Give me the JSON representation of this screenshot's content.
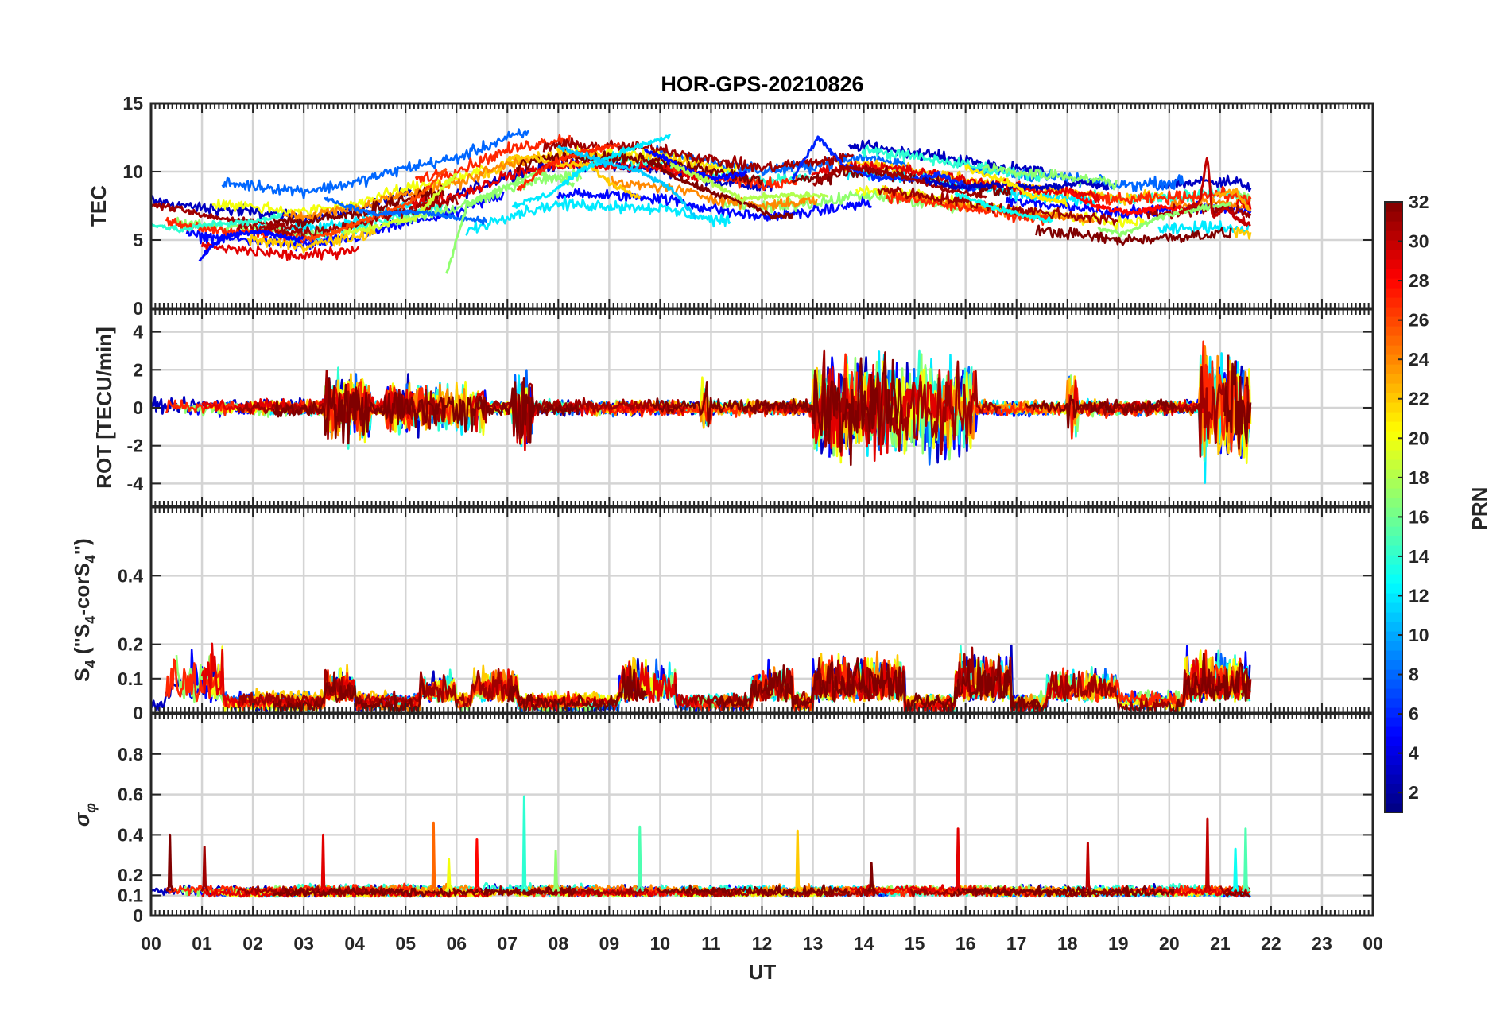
{
  "chart_data": {
    "type": "line",
    "title": "HOR-GPS-20210826",
    "xlabel": "UT",
    "x_ticks": [
      "00",
      "01",
      "02",
      "03",
      "04",
      "05",
      "06",
      "07",
      "08",
      "09",
      "10",
      "11",
      "12",
      "13",
      "14",
      "15",
      "16",
      "17",
      "18",
      "19",
      "20",
      "21",
      "22",
      "23",
      "00"
    ],
    "x_range_hours": [
      0,
      24
    ],
    "data_end_hour": 21.6,
    "colorbar": {
      "label": "PRN",
      "range": [
        1,
        32
      ],
      "ticks": [
        "2",
        "4",
        "6",
        "8",
        "10",
        "12",
        "14",
        "16",
        "18",
        "20",
        "22",
        "24",
        "26",
        "28",
        "30",
        "32"
      ],
      "colormap": "jet"
    },
    "panels": [
      {
        "id": "tec",
        "ylabel": "TEC",
        "ylim": [
          0,
          15
        ],
        "yticks": [
          "0",
          "5",
          "10",
          "15"
        ],
        "baseline": [
          [
            0,
            6.8
          ],
          [
            1,
            6.3
          ],
          [
            2,
            6.0
          ],
          [
            3,
            5.6
          ],
          [
            4,
            6.2
          ],
          [
            5,
            7.3
          ],
          [
            6,
            8.0
          ],
          [
            7,
            9.5
          ],
          [
            8,
            10.3
          ],
          [
            9,
            10.2
          ],
          [
            10,
            10.0
          ],
          [
            11,
            9.2
          ],
          [
            12,
            8.6
          ],
          [
            13,
            9.0
          ],
          [
            14,
            9.6
          ],
          [
            15,
            9.1
          ],
          [
            16,
            8.5
          ],
          [
            17,
            7.9
          ],
          [
            18,
            7.6
          ],
          [
            19,
            7.1
          ],
          [
            20,
            7.3
          ],
          [
            21,
            7.6
          ],
          [
            21.6,
            7.2
          ]
        ],
        "spread": 2.0,
        "noise": 0.35,
        "series": [
          {
            "prn": 31,
            "points": [
              [
                0,
                7.6
              ],
              [
                0.5,
                7.3
              ],
              [
                1,
                6.8
              ],
              [
                1.5,
                6.5
              ],
              [
                2,
                6.4
              ],
              [
                2.5,
                6.1
              ],
              [
                3,
                5.8
              ]
            ]
          },
          {
            "prn": 5,
            "points": [
              [
                0.95,
                3.6
              ],
              [
                1.2,
                4.6
              ],
              [
                1.6,
                5.4
              ],
              [
                2.2,
                5.6
              ],
              [
                2.8,
                5.1
              ],
              [
                3.2,
                5.0
              ]
            ]
          },
          {
            "prn": 14,
            "points": [
              [
                0,
                6.2
              ],
              [
                0.6,
                5.7
              ],
              [
                1.2,
                6.2
              ],
              [
                2,
                6.3
              ],
              [
                2.6,
                6.9
              ]
            ]
          },
          {
            "prn": 26,
            "points": [
              [
                3,
                5.0
              ],
              [
                3.6,
                5.6
              ],
              [
                4.3,
                6.6
              ],
              [
                5,
                7.6
              ],
              [
                5.5,
                9.0
              ],
              [
                5.8,
                10.3
              ]
            ]
          },
          {
            "prn": 19,
            "points": [
              [
                3.8,
                5.5
              ],
              [
                4.5,
                6.0
              ],
              [
                5.2,
                6.7
              ],
              [
                5.8,
                9.1
              ],
              [
                6,
                9.8
              ]
            ]
          },
          {
            "prn": 8,
            "points": [
              [
                3.4,
                8.1
              ],
              [
                3.9,
                7.4
              ],
              [
                4.4,
                6.9
              ],
              [
                5.3,
                7.1
              ],
              [
                6,
                6.6
              ],
              [
                6.6,
                6.4
              ]
            ]
          },
          {
            "prn": 17,
            "points": [
              [
                5.8,
                2.5
              ],
              [
                6.2,
                7.5
              ],
              [
                7,
                9.0
              ],
              [
                7.6,
                10.0
              ],
              [
                8.3,
                9.0
              ]
            ]
          },
          {
            "prn": 22,
            "points": [
              [
                7,
                11.0
              ],
              [
                7.5,
                11.1
              ],
              [
                8,
                10.5
              ],
              [
                8.6,
                10.5
              ],
              [
                9,
                9.2
              ],
              [
                9.6,
                8.2
              ]
            ]
          },
          {
            "prn": 27,
            "points": [
              [
                7.2,
                8.7
              ],
              [
                7.8,
                10.5
              ],
              [
                8.5,
                11.5
              ],
              [
                9.2,
                12.0
              ]
            ]
          },
          {
            "prn": 12,
            "points": [
              [
                7.1,
                7.5
              ],
              [
                7.8,
                8.3
              ],
              [
                8.5,
                10.2
              ],
              [
                9.2,
                11.4
              ],
              [
                10.2,
                12.6
              ]
            ]
          },
          {
            "prn": 11,
            "points": [
              [
                8,
                11.8
              ],
              [
                8.8,
                10.8
              ],
              [
                9.6,
                10.0
              ],
              [
                10.2,
                8.8
              ],
              [
                10.7,
                6.6
              ]
            ]
          },
          {
            "prn": 32,
            "points": [
              [
                9.8,
                10.8
              ],
              [
                10.3,
                9.6
              ],
              [
                11,
                8.5
              ],
              [
                11.8,
                7.5
              ],
              [
                12.2,
                6.7
              ],
              [
                12.6,
                6.8
              ]
            ]
          },
          {
            "prn": 5,
            "points": [
              [
                9.7,
                11.6
              ],
              [
                10.4,
                10.4
              ],
              [
                11,
                9.5
              ],
              [
                11.7,
                9.9
              ]
            ]
          },
          {
            "prn": 18,
            "points": [
              [
                10.2,
                10.6
              ],
              [
                11,
                9.2
              ],
              [
                11.6,
                8.0
              ],
              [
                12.5,
                8.3
              ],
              [
                13.3,
                8.2
              ]
            ]
          },
          {
            "prn": 6,
            "points": [
              [
                12.6,
                9.5
              ],
              [
                13.1,
                12.5
              ],
              [
                13.6,
                10.5
              ],
              [
                14.2,
                9.6
              ],
              [
                14.9,
                9.4
              ],
              [
                15.5,
                9.8
              ],
              [
                16.2,
                8.6
              ]
            ]
          },
          {
            "prn": 31,
            "points": [
              [
                13,
                9.0
              ],
              [
                13.6,
                10.4
              ],
              [
                14.2,
                10.1
              ],
              [
                14.8,
                9.6
              ],
              [
                15.6,
                8.7
              ],
              [
                16.4,
                8.2
              ]
            ]
          },
          {
            "prn": 3,
            "points": [
              [
                15.2,
                9.4
              ],
              [
                15.9,
                8.8
              ],
              [
                16.5,
                9.1
              ],
              [
                17.5,
                8.8
              ],
              [
                18.3,
                9.2
              ],
              [
                18.8,
                8.8
              ]
            ]
          },
          {
            "prn": 21,
            "points": [
              [
                16,
                10.3
              ],
              [
                16.8,
                9.3
              ],
              [
                17.3,
                8.2
              ],
              [
                18,
                7.7
              ]
            ]
          },
          {
            "prn": 13,
            "points": [
              [
                15.8,
                8.4
              ],
              [
                16.6,
                7.3
              ],
              [
                17.3,
                6.7
              ],
              [
                17.7,
                6.4
              ]
            ]
          },
          {
            "prn": 28,
            "points": [
              [
                18,
                8.6
              ],
              [
                18.6,
                7.4
              ],
              [
                19.3,
                7.0
              ],
              [
                19.8,
                7.4
              ],
              [
                20.4,
                7.2
              ]
            ]
          },
          {
            "prn": 17,
            "points": [
              [
                18.6,
                5.9
              ],
              [
                19.1,
                5.4
              ],
              [
                19.8,
                6.7
              ],
              [
                20.5,
                7.2
              ],
              [
                21.2,
                7.7
              ]
            ]
          },
          {
            "prn": 30,
            "points": [
              [
                20.2,
                7.0
              ],
              [
                20.6,
                7.8
              ],
              [
                20.75,
                11.2
              ],
              [
                20.85,
                6.5
              ],
              [
                21.1,
                7.4
              ],
              [
                21.3,
                6.6
              ],
              [
                21.6,
                6.2
              ]
            ]
          },
          {
            "prn": 23,
            "points": [
              [
                20.9,
                8.3
              ],
              [
                21.3,
                8.6
              ],
              [
                21.6,
                7.1
              ]
            ]
          }
        ]
      },
      {
        "id": "rot",
        "ylabel": "ROT [TECU/min]",
        "ylim": [
          -5.2,
          5.2
        ],
        "yticks": [
          "-4",
          "-2",
          "0",
          "2",
          "4"
        ],
        "baseline": [
          [
            0,
            0
          ],
          [
            21.6,
            0
          ]
        ],
        "spread": 0.1,
        "noise": 0.28,
        "bursts": [
          {
            "start": 3.4,
            "end": 4.3,
            "amp": 1.2
          },
          {
            "start": 4.6,
            "end": 6.6,
            "amp": 0.9
          },
          {
            "start": 7.1,
            "end": 7.5,
            "amp": 1.5
          },
          {
            "start": 10.8,
            "end": 11.0,
            "amp": 0.9
          },
          {
            "start": 13.0,
            "end": 16.2,
            "amp": 1.9
          },
          {
            "start": 18.0,
            "end": 18.2,
            "amp": 1.3
          },
          {
            "start": 20.6,
            "end": 21.6,
            "amp": 2.4
          }
        ],
        "series": []
      },
      {
        "id": "s4",
        "ylabel": "S4 (\"S4-corS4\")",
        "ylabel_parts": [
          "S",
          "4",
          " (\"S",
          "4",
          "-corS",
          "4",
          "\")"
        ],
        "ylim": [
          0,
          0.6
        ],
        "yticks": [
          "0",
          "0.1",
          "0.2",
          "0.4"
        ],
        "baseline": [
          [
            0,
            0.03
          ],
          [
            21.6,
            0.03
          ]
        ],
        "spread": 0.015,
        "noise": 0.018,
        "bursts": [
          {
            "start": 0.3,
            "end": 1.4,
            "amp": 0.1
          },
          {
            "start": 3.4,
            "end": 4.0,
            "amp": 0.06
          },
          {
            "start": 5.3,
            "end": 6.0,
            "amp": 0.05
          },
          {
            "start": 6.3,
            "end": 7.2,
            "amp": 0.06
          },
          {
            "start": 9.2,
            "end": 10.3,
            "amp": 0.08
          },
          {
            "start": 11.8,
            "end": 12.6,
            "amp": 0.07
          },
          {
            "start": 13.0,
            "end": 14.8,
            "amp": 0.09
          },
          {
            "start": 15.8,
            "end": 16.9,
            "amp": 0.09
          },
          {
            "start": 17.6,
            "end": 19.0,
            "amp": 0.06
          },
          {
            "start": 20.3,
            "end": 21.6,
            "amp": 0.09
          }
        ],
        "series": []
      },
      {
        "id": "sigma",
        "ylabel": "σ φ",
        "ylabel_parts": [
          "σ",
          "φ"
        ],
        "ylim": [
          0,
          1
        ],
        "yticks": [
          "0",
          "0.1",
          "0.2",
          "0.4",
          "0.6",
          "0.8"
        ],
        "baseline": [
          [
            0,
            0.12
          ],
          [
            21.6,
            0.12
          ]
        ],
        "spread": 0.012,
        "noise": 0.018,
        "spikes": [
          {
            "x": 0.37,
            "y": 0.4,
            "prn": 32
          },
          {
            "x": 1.05,
            "y": 0.34,
            "prn": 31
          },
          {
            "x": 3.38,
            "y": 0.4,
            "prn": 29
          },
          {
            "x": 5.55,
            "y": 0.46,
            "prn": 25
          },
          {
            "x": 5.85,
            "y": 0.28,
            "prn": 20
          },
          {
            "x": 6.4,
            "y": 0.38,
            "prn": 28
          },
          {
            "x": 7.33,
            "y": 0.59,
            "prn": 14
          },
          {
            "x": 7.95,
            "y": 0.32,
            "prn": 17
          },
          {
            "x": 9.6,
            "y": 0.44,
            "prn": 15
          },
          {
            "x": 12.7,
            "y": 0.42,
            "prn": 22
          },
          {
            "x": 14.15,
            "y": 0.26,
            "prn": 32
          },
          {
            "x": 15.85,
            "y": 0.43,
            "prn": 29
          },
          {
            "x": 18.4,
            "y": 0.36,
            "prn": 30
          },
          {
            "x": 20.75,
            "y": 0.48,
            "prn": 30
          },
          {
            "x": 21.3,
            "y": 0.33,
            "prn": 13
          },
          {
            "x": 21.5,
            "y": 0.43,
            "prn": 15
          }
        ],
        "series": []
      }
    ]
  }
}
